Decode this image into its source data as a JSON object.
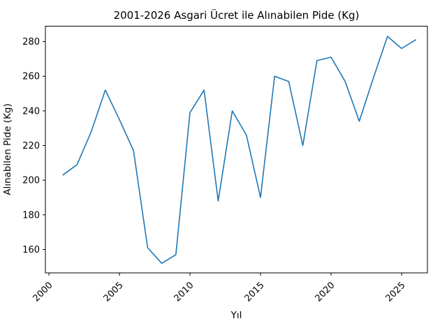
{
  "chart_data": {
    "type": "line",
    "title": "2001-2026 Asgari Ücret ile Alınabilen Pide (Kg)",
    "xlabel": "Yıl",
    "ylabel": "Alınabilen Pide (Kg)",
    "x": [
      2001,
      2002,
      2003,
      2004,
      2005,
      2006,
      2007,
      2008,
      2009,
      2010,
      2011,
      2012,
      2013,
      2014,
      2015,
      2016,
      2017,
      2018,
      2019,
      2020,
      2021,
      2022,
      2023,
      2024,
      2025,
      2026
    ],
    "values": [
      203,
      209,
      228,
      252,
      235,
      217,
      161,
      152,
      157,
      239,
      252,
      188,
      240,
      226,
      190,
      260,
      257,
      220,
      269,
      271,
      257,
      234,
      259,
      283,
      276,
      281
    ],
    "xticks": [
      2000,
      2005,
      2010,
      2015,
      2020,
      2025
    ],
    "yticks": [
      160,
      180,
      200,
      220,
      240,
      260,
      280
    ],
    "xlim": [
      1999.75,
      2026.83
    ],
    "ylim": [
      146.5,
      288.9
    ],
    "xtick_rotation_deg": 45,
    "grid": false,
    "legend": null,
    "line_color": "#1f77b4",
    "background_color": "#ffffff",
    "spine_color": "#000000"
  }
}
